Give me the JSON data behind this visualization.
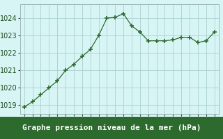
{
  "x": [
    0,
    1,
    2,
    3,
    4,
    5,
    6,
    7,
    8,
    9,
    10,
    11,
    12,
    13,
    14,
    15,
    16,
    17,
    18,
    19,
    20,
    21,
    22,
    23
  ],
  "y": [
    1018.9,
    1019.2,
    1019.6,
    1020.0,
    1020.4,
    1021.0,
    1021.35,
    1021.8,
    1022.2,
    1023.0,
    1024.0,
    1024.05,
    1024.25,
    1023.55,
    1023.2,
    1022.7,
    1022.7,
    1022.7,
    1022.75,
    1022.9,
    1022.9,
    1022.6,
    1022.7,
    1023.2
  ],
  "line_color": "#2d6a2d",
  "marker": "+",
  "bg_color": "#d8f5f5",
  "label_bg_color": "#2d6a2d",
  "grid_color": "#aacfcf",
  "xlabel": "Graphe pression niveau de la mer (hPa)",
  "xlabel_fontsize": 8,
  "xlabel_color": "#ffffff",
  "tick_color": "#1a4a1a",
  "ylim": [
    1018.5,
    1024.8
  ],
  "yticks": [
    1019,
    1020,
    1021,
    1022,
    1023,
    1024
  ],
  "xticks": [
    0,
    1,
    2,
    3,
    4,
    5,
    6,
    7,
    8,
    9,
    10,
    11,
    12,
    13,
    14,
    15,
    16,
    17,
    18,
    19,
    20,
    21,
    22,
    23
  ],
  "tick_fontsize": 7,
  "spine_color": "#a0b8b8"
}
